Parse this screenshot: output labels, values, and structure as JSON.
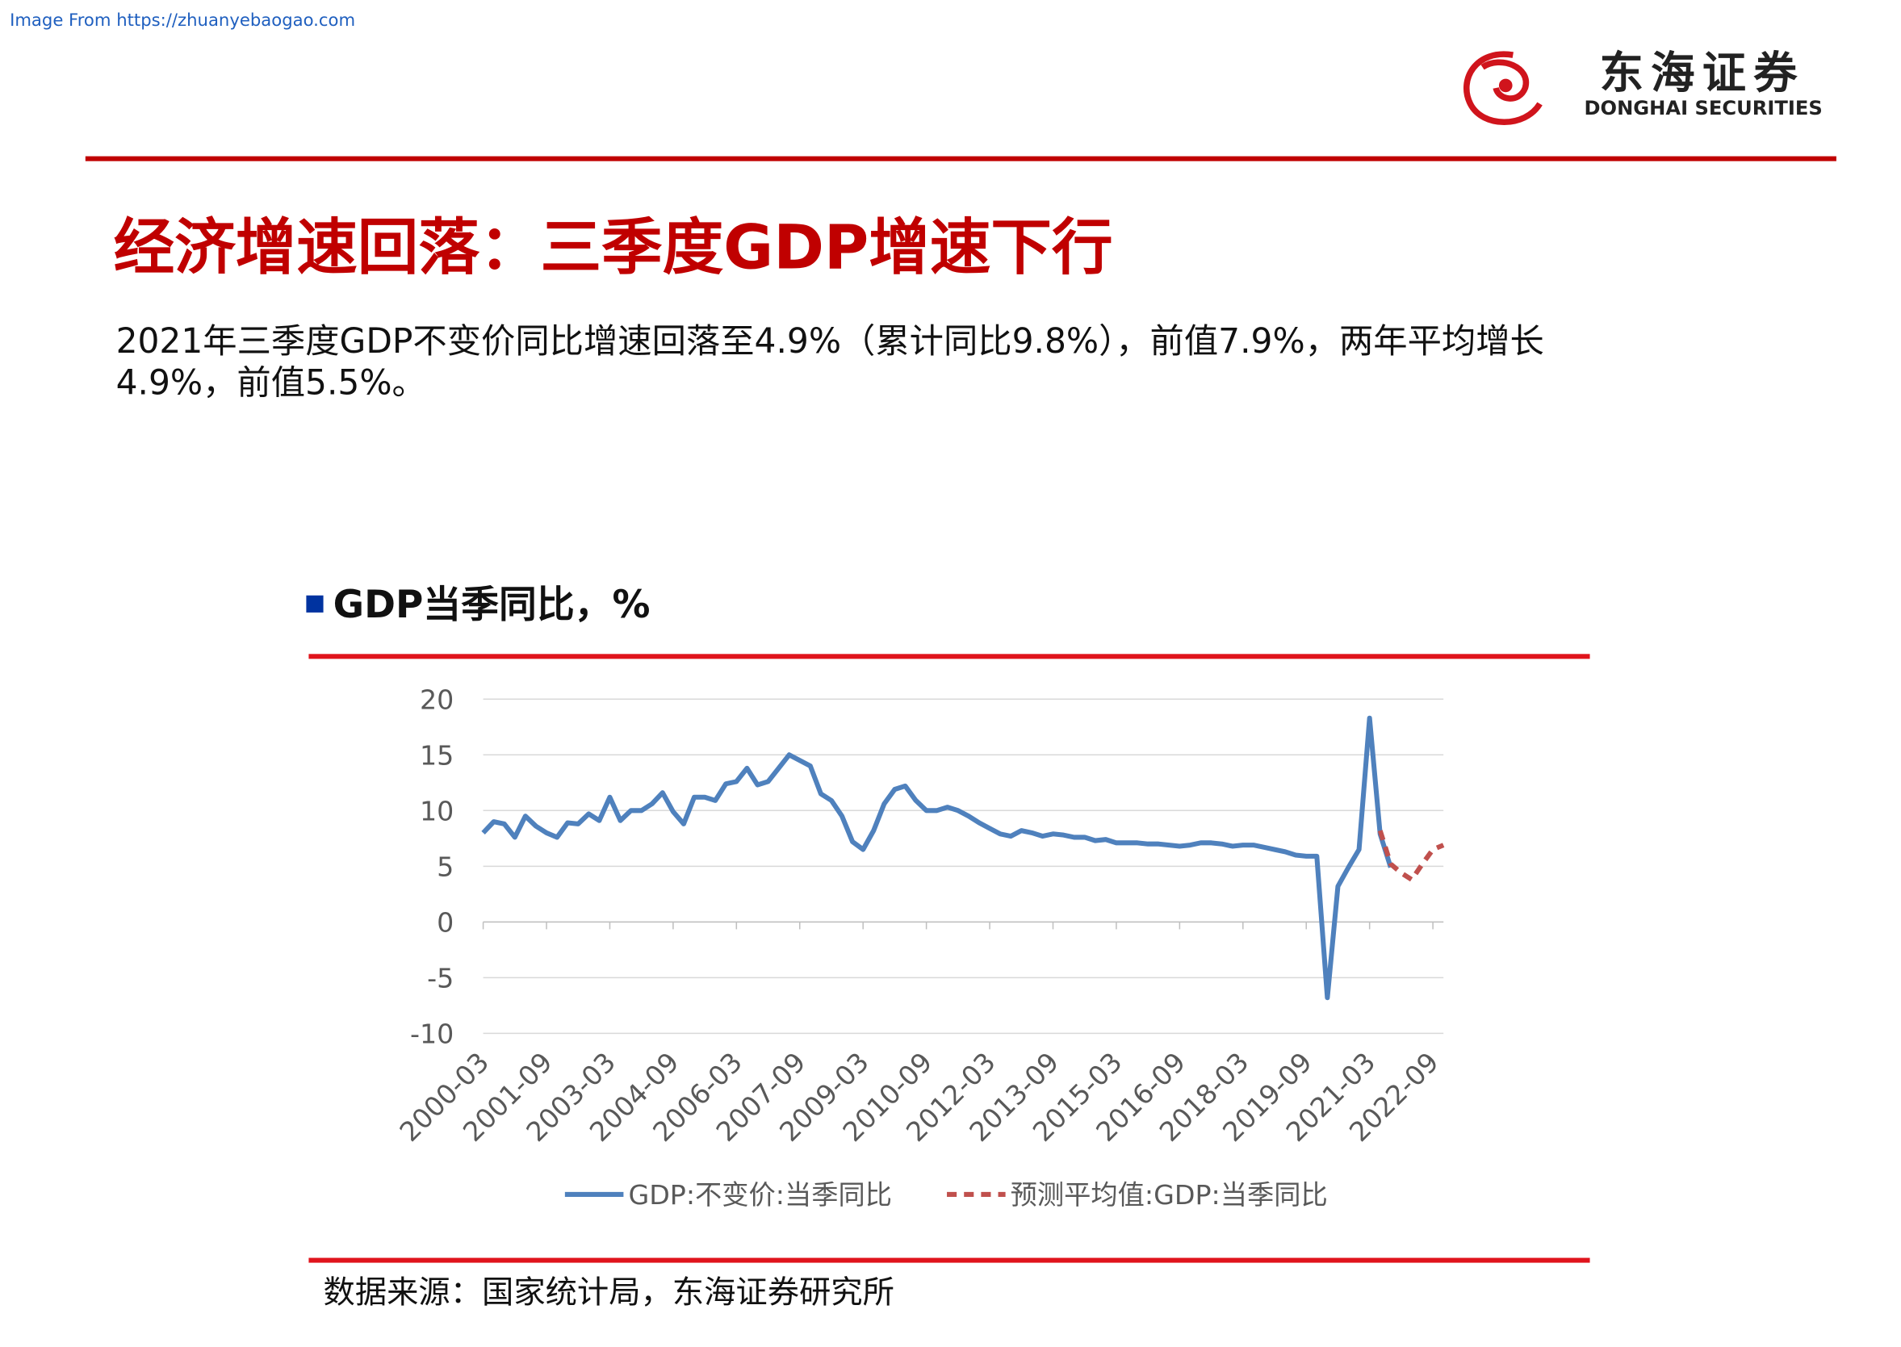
{
  "header": {
    "source_url": "Image From https://zhuanyebaogao.com",
    "logo_cn": "东海证券",
    "logo_en": "DONGHAI SECURITIES"
  },
  "title": "经济增速回落：三季度GDP增速下行",
  "paragraph": [
    "2021年三季度GDP不变价同比增速回落至4.9%（累计同比9.8%），前值7.9%，两年平均增长",
    "4.9%，前值5.5%。"
  ],
  "chart_data": {
    "type": "line",
    "title": "GDP当季同比，%",
    "categories": [
      "2000-03",
      null,
      null,
      null,
      null,
      null,
      "2001-09",
      null,
      null,
      null,
      null,
      null,
      "2003-03",
      null,
      null,
      null,
      null,
      null,
      "2004-09",
      null,
      null,
      null,
      null,
      null,
      "2006-03",
      null,
      null,
      null,
      null,
      null,
      "2007-09",
      null,
      null,
      null,
      null,
      null,
      "2009-03",
      null,
      null,
      null,
      null,
      null,
      "2010-09",
      null,
      null,
      null,
      null,
      null,
      "2012-03",
      null,
      null,
      null,
      null,
      null,
      "2013-09",
      null,
      null,
      null,
      null,
      null,
      "2015-03",
      null,
      null,
      null,
      null,
      null,
      "2016-09",
      null,
      null,
      null,
      null,
      null,
      "2018-03",
      null,
      null,
      null,
      null,
      null,
      "2019-09",
      null,
      null,
      null,
      null,
      null,
      "2021-03",
      null,
      null,
      null,
      null,
      null,
      "2022-09",
      null
    ],
    "series": [
      {
        "name": "GDP:不变价:当季同比",
        "color": "#4f81bd",
        "dashed": false,
        "values": [
          8.0,
          9.0,
          8.8,
          7.6,
          9.5,
          8.6,
          8.0,
          7.6,
          8.9,
          8.8,
          9.7,
          9.1,
          11.2,
          9.1,
          10.0,
          10.0,
          10.6,
          11.6,
          9.9,
          8.8,
          11.2,
          11.2,
          10.9,
          12.4,
          12.6,
          13.8,
          12.3,
          12.6,
          13.8,
          15.0,
          14.5,
          14.0,
          11.5,
          10.9,
          9.5,
          7.2,
          6.5,
          8.2,
          10.6,
          11.9,
          12.2,
          10.9,
          10.0,
          10.0,
          10.3,
          10.0,
          9.5,
          8.9,
          8.4,
          7.9,
          7.7,
          8.2,
          8.0,
          7.7,
          7.9,
          7.8,
          7.6,
          7.6,
          7.3,
          7.4,
          7.1,
          7.1,
          7.1,
          7.0,
          7.0,
          6.9,
          6.8,
          6.9,
          7.1,
          7.1,
          7.0,
          6.8,
          6.9,
          6.9,
          6.7,
          6.5,
          6.3,
          6.0,
          5.9,
          5.9,
          -6.8,
          3.2,
          4.9,
          6.5,
          18.3,
          7.9,
          4.9,
          null,
          null,
          null,
          null,
          null
        ]
      },
      {
        "name": "预测平均值:GDP:当季同比",
        "color": "#c0504d",
        "dashed": true,
        "values": [
          null,
          null,
          null,
          null,
          null,
          null,
          null,
          null,
          null,
          null,
          null,
          null,
          null,
          null,
          null,
          null,
          null,
          null,
          null,
          null,
          null,
          null,
          null,
          null,
          null,
          null,
          null,
          null,
          null,
          null,
          null,
          null,
          null,
          null,
          null,
          null,
          null,
          null,
          null,
          null,
          null,
          null,
          null,
          null,
          null,
          null,
          null,
          null,
          null,
          null,
          null,
          null,
          null,
          null,
          null,
          null,
          null,
          null,
          null,
          null,
          null,
          null,
          null,
          null,
          null,
          null,
          null,
          null,
          null,
          null,
          null,
          null,
          null,
          null,
          null,
          null,
          null,
          null,
          null,
          null,
          null,
          null,
          null,
          null,
          null,
          8.2,
          5.2,
          4.4,
          3.8,
          5.2,
          6.5,
          6.9
        ]
      }
    ],
    "ylim": [
      -10,
      20
    ],
    "yticks": [
      -10,
      -5,
      0,
      5,
      10,
      15,
      20
    ],
    "grid": true
  },
  "footer": {
    "source": "数据来源：国家统计局，东海证券研究所"
  }
}
